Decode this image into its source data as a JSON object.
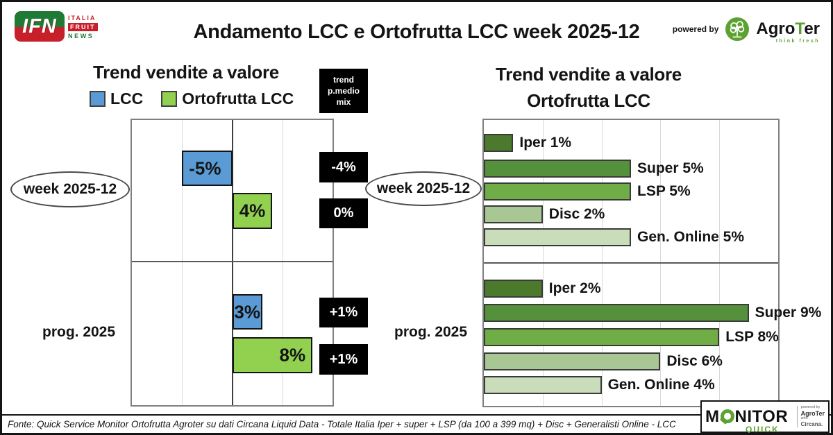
{
  "header": {
    "title": "Andamento LCC e Ortofrutta LCC week 2025-12",
    "ifn_logo": {
      "main": "IFN",
      "line1": "ITALIA",
      "line2": "FRUIT",
      "line3": "NEWS",
      "green": "#1e7a35",
      "red": "#c8202b"
    },
    "powered_by": "powered by",
    "agroter": {
      "name_pre": "Agro",
      "name_t": "T",
      "name_post": "er",
      "tagline": "think fresh",
      "accent": "#5ca131"
    }
  },
  "chart_data": [
    {
      "type": "bar",
      "orientation": "horizontal",
      "title": "Trend vendite a valore",
      "legend": [
        {
          "label": "LCC",
          "color": "#5B9BD5"
        },
        {
          "label": "Ortofrutta LCC",
          "color": "#92D050"
        }
      ],
      "xlim": [
        -10,
        10
      ],
      "gridlines_every": 5,
      "grid": true,
      "extra_column_header": "trend p.medio mix",
      "groups": [
        {
          "label": "week 2025-12",
          "bars": [
            {
              "series": "LCC",
              "value": -5,
              "label": "-5%",
              "mix": "-4%"
            },
            {
              "series": "Ortofrutta LCC",
              "value": 4,
              "label": "4%",
              "mix": "0%"
            }
          ]
        },
        {
          "label": "prog. 2025",
          "bars": [
            {
              "series": "LCC",
              "value": 3,
              "label": "3%",
              "mix": "+1%"
            },
            {
              "series": "Ortofrutta LCC",
              "value": 8,
              "label": "8%",
              "mix": "+1%"
            }
          ]
        }
      ]
    },
    {
      "type": "bar",
      "orientation": "horizontal",
      "title": "Trend vendite a valore Ortofrutta LCC",
      "title_lines": [
        "Trend vendite a valore",
        "Ortofrutta LCC"
      ],
      "xlim": [
        0,
        10
      ],
      "gridlines_every": 2,
      "grid": true,
      "category_colors": {
        "Iper": "#4C7A2D",
        "Super": "#55913A",
        "LSP": "#70AD47",
        "Disc": "#A9C795",
        "Gen. Online": "#CADDBB"
      },
      "groups": [
        {
          "label": "week 2025-12",
          "bars": [
            {
              "category": "Iper",
              "value": 1,
              "label": "Iper 1%"
            },
            {
              "category": "Super",
              "value": 5,
              "label": "Super 5%"
            },
            {
              "category": "LSP",
              "value": 5,
              "label": "LSP 5%"
            },
            {
              "category": "Disc",
              "value": 2,
              "label": "Disc 2%"
            },
            {
              "category": "Gen. Online",
              "value": 5,
              "label": "Gen. Online 5%"
            }
          ]
        },
        {
          "label": "prog. 2025",
          "bars": [
            {
              "category": "Iper",
              "value": 2,
              "label": "Iper 2%"
            },
            {
              "category": "Super",
              "value": 9,
              "label": "Super 9%"
            },
            {
              "category": "LSP",
              "value": 8,
              "label": "LSP 8%"
            },
            {
              "category": "Disc",
              "value": 6,
              "label": "Disc 6%"
            },
            {
              "category": "Gen. Online",
              "value": 4,
              "label": "Gen. Online 4%"
            }
          ]
        }
      ]
    }
  ],
  "footer": {
    "source": "Fonte: Quick Service Monitor Ortofrutta Agroter su dati Circana Liquid Data - Totale Italia Iper + super + LSP (da 100 a 399 mq) + Disc + Generalisti Online - LCC"
  },
  "monitor_logo": {
    "word_pre": "M",
    "word_post": "NITOR",
    "quick": "QUICK",
    "powered_by": "powered by",
    "agroter": "AgroTer",
    "with": "with",
    "circana": "Circana.",
    "accent": "#5ca131"
  }
}
